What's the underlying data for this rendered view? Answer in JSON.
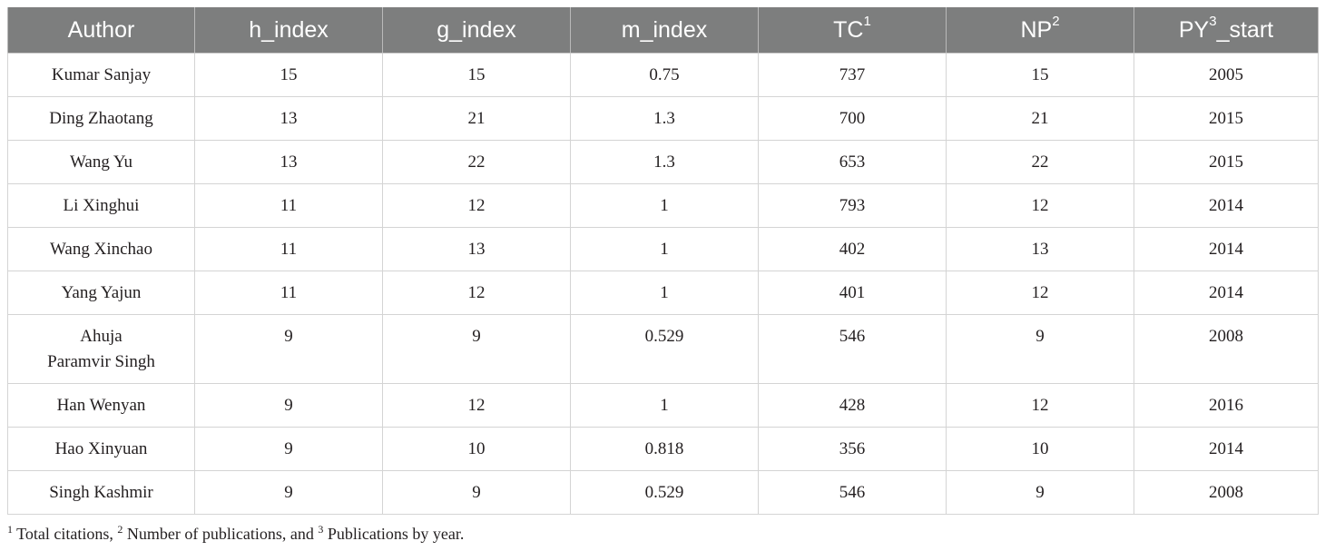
{
  "table": {
    "headers": [
      {
        "text": "Author",
        "sup": ""
      },
      {
        "text": "h_index",
        "sup": ""
      },
      {
        "text": "g_index",
        "sup": ""
      },
      {
        "text": "m_index",
        "sup": ""
      },
      {
        "text": "TC",
        "sup": "1"
      },
      {
        "text": "NP",
        "sup": "2"
      },
      {
        "text": "PY",
        "sup": "3",
        "suffix": "_start"
      }
    ],
    "rows": [
      {
        "author": [
          "Kumar Sanjay"
        ],
        "h_index": "15",
        "g_index": "15",
        "m_index": "0.75",
        "tc": "737",
        "np": "15",
        "py_start": "2005"
      },
      {
        "author": [
          "Ding Zhaotang"
        ],
        "h_index": "13",
        "g_index": "21",
        "m_index": "1.3",
        "tc": "700",
        "np": "21",
        "py_start": "2015"
      },
      {
        "author": [
          "Wang Yu"
        ],
        "h_index": "13",
        "g_index": "22",
        "m_index": "1.3",
        "tc": "653",
        "np": "22",
        "py_start": "2015"
      },
      {
        "author": [
          "Li Xinghui"
        ],
        "h_index": "11",
        "g_index": "12",
        "m_index": "1",
        "tc": "793",
        "np": "12",
        "py_start": "2014"
      },
      {
        "author": [
          "Wang Xinchao"
        ],
        "h_index": "11",
        "g_index": "13",
        "m_index": "1",
        "tc": "402",
        "np": "13",
        "py_start": "2014"
      },
      {
        "author": [
          "Yang Yajun"
        ],
        "h_index": "11",
        "g_index": "12",
        "m_index": "1",
        "tc": "401",
        "np": "12",
        "py_start": "2014"
      },
      {
        "author": [
          "Ahuja",
          "Paramvir Singh"
        ],
        "h_index": "9",
        "g_index": "9",
        "m_index": "0.529",
        "tc": "546",
        "np": "9",
        "py_start": "2008"
      },
      {
        "author": [
          "Han Wenyan"
        ],
        "h_index": "9",
        "g_index": "12",
        "m_index": "1",
        "tc": "428",
        "np": "12",
        "py_start": "2016"
      },
      {
        "author": [
          "Hao Xinyuan"
        ],
        "h_index": "9",
        "g_index": "10",
        "m_index": "0.818",
        "tc": "356",
        "np": "10",
        "py_start": "2014"
      },
      {
        "author": [
          "Singh Kashmir"
        ],
        "h_index": "9",
        "g_index": "9",
        "m_index": "0.529",
        "tc": "546",
        "np": "9",
        "py_start": "2008"
      }
    ]
  },
  "footnote": {
    "parts": [
      {
        "sup": "1",
        "text": " Total citations, "
      },
      {
        "sup": "2",
        "text": " Number of publications, and "
      },
      {
        "sup": "3",
        "text": " Publications by year."
      }
    ]
  }
}
